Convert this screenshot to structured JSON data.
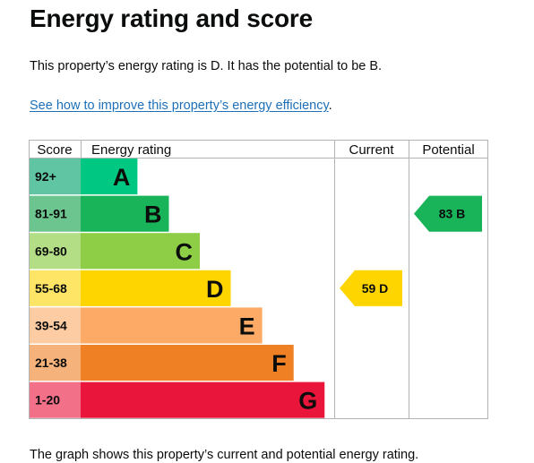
{
  "heading": "Energy rating and score",
  "intro_text": "This property’s energy rating is D. It has the potential to be B.",
  "improve_link": {
    "label": "See how to improve this property’s energy efficiency",
    "trailing": "."
  },
  "footer_text": "The graph shows this property’s current and potential energy rating.",
  "chart_data": {
    "type": "bar",
    "title": "",
    "headers": {
      "score": "Score",
      "rating": "Energy rating",
      "current": "Current",
      "potential": "Potential"
    },
    "bands": [
      {
        "score": "92+",
        "letter": "A",
        "color": "#008054",
        "score_bg": "#5fc5a2",
        "bar_color": "#00c781",
        "width_fraction": 0.224
      },
      {
        "score": "81-91",
        "letter": "B",
        "color": "#19b459",
        "score_bg": "#6cc58f",
        "bar_color": "#19b459",
        "width_fraction": 0.348
      },
      {
        "score": "69-80",
        "letter": "C",
        "color": "#8dce46",
        "score_bg": "#b4de86",
        "bar_color": "#8dce46",
        "width_fraction": 0.47
      },
      {
        "score": "55-68",
        "letter": "D",
        "color": "#ffd500",
        "score_bg": "#ffe566",
        "bar_color": "#ffd500",
        "width_fraction": 0.592
      },
      {
        "score": "39-54",
        "letter": "E",
        "color": "#fcaa65",
        "score_bg": "#fdcca3",
        "bar_color": "#fcaa65",
        "width_fraction": 0.716
      },
      {
        "score": "21-38",
        "letter": "F",
        "color": "#ef8023",
        "score_bg": "#f5b37b",
        "bar_color": "#ef8023",
        "width_fraction": 0.84
      },
      {
        "score": "1-20",
        "letter": "G",
        "color": "#e9153b",
        "score_bg": "#f27189",
        "bar_color": "#e9153b",
        "width_fraction": 0.962
      }
    ],
    "current": {
      "score": 59,
      "band": "D",
      "label": "59  D",
      "color": "#ffd500",
      "text_color": "#0b0c0c"
    },
    "potential": {
      "score": 83,
      "band": "B",
      "label": "83  B",
      "color": "#19b459",
      "text_color": "#0b0c0c"
    }
  }
}
